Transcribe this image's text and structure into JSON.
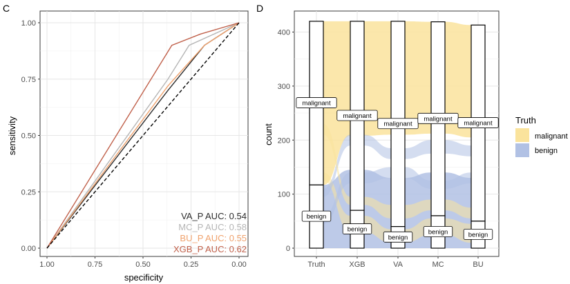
{
  "chart_data": [
    {
      "panel_label": "C",
      "type": "line",
      "xlabel": "specificity",
      "ylabel": "sensitivity",
      "xlim": [
        1.0,
        0.0
      ],
      "ylim": [
        0.0,
        1.0
      ],
      "x_reversed": true,
      "x_ticks": [
        "1.00",
        "0.75",
        "0.50",
        "0.25",
        "0.00"
      ],
      "x_tick_values": [
        1.0,
        0.75,
        0.5,
        0.25,
        0.0
      ],
      "y_ticks": [
        "0.00",
        "0.25",
        "0.50",
        "0.75",
        "1.00"
      ],
      "y_tick_values": [
        0.0,
        0.25,
        0.5,
        0.75,
        1.0
      ],
      "grid": true,
      "reference_line": {
        "style": "dashed",
        "color": "#000000",
        "points": [
          [
            1.0,
            0.0
          ],
          [
            0.0,
            1.0
          ]
        ]
      },
      "series": [
        {
          "color": "#2b2b2b",
          "points": [
            [
              1.0,
              0.0
            ],
            [
              0.37,
              0.7
            ],
            [
              0.18,
              0.9
            ],
            [
              0.0,
              1.0
            ]
          ]
        },
        {
          "color": "#b5b5b5",
          "points": [
            [
              1.0,
              0.0
            ],
            [
              0.37,
              0.75
            ],
            [
              0.26,
              0.9
            ],
            [
              0.0,
              1.0
            ]
          ]
        },
        {
          "color": "#f0a26d",
          "points": [
            [
              1.0,
              0.0
            ],
            [
              0.37,
              0.72
            ],
            [
              0.18,
              0.9
            ],
            [
              0.0,
              1.0
            ]
          ]
        },
        {
          "color": "#c0604a",
          "points": [
            [
              1.0,
              0.0
            ],
            [
              0.35,
              0.9
            ],
            [
              0.2,
              0.95
            ],
            [
              0.0,
              1.0
            ]
          ]
        }
      ],
      "annotations": [
        {
          "text": "VA_P AUC: 0.54",
          "color": "#2b2b2b"
        },
        {
          "text": "MC_P AUC: 0.58",
          "color": "#b5b5b5"
        },
        {
          "text": "BU_P AUC: 0.55",
          "color": "#f0a26d"
        },
        {
          "text": "XGB_P AUC: 0.62",
          "color": "#c0604a"
        }
      ]
    },
    {
      "panel_label": "D",
      "type": "alluvial",
      "xlabel": "",
      "ylabel": "count",
      "ylim": [
        0,
        420
      ],
      "y_ticks": [
        "0",
        "100",
        "200",
        "300",
        "400"
      ],
      "y_tick_values": [
        0,
        100,
        200,
        300,
        400
      ],
      "grid": true,
      "axes": [
        "Truth",
        "XGB",
        "VA",
        "MC",
        "BU"
      ],
      "strata": [
        {
          "axis": "Truth",
          "malignant": 303,
          "benign": 117
        },
        {
          "axis": "XGB",
          "malignant": 350,
          "benign": 70
        },
        {
          "axis": "VA",
          "malignant": 380,
          "benign": 40
        },
        {
          "axis": "MC",
          "malignant": 359,
          "benign": 60
        },
        {
          "axis": "BU",
          "malignant": 363,
          "benign": 50
        }
      ],
      "stratum_labels": {
        "malignant": "malignant",
        "benign": "benign"
      },
      "legend": {
        "title": "Truth",
        "position": "right",
        "entries": [
          {
            "label": "malignant",
            "color": "#fae39c"
          },
          {
            "label": "benign",
            "color": "#b1c1e4"
          }
        ]
      }
    }
  ]
}
